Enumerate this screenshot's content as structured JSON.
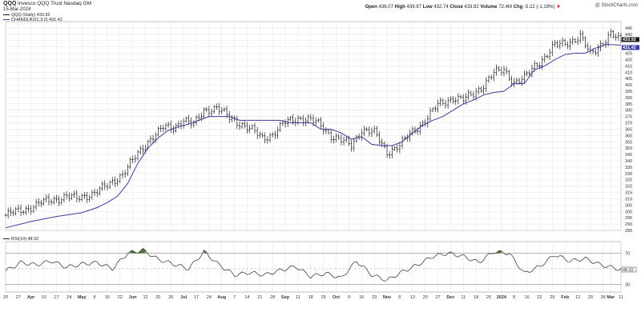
{
  "header": {
    "symbol": "QQQ",
    "name": "Invesco QQQ Trust",
    "exchange": "Nasdaq GM",
    "date": "15-Mar-2024",
    "open_label": "Open",
    "open": "436.07",
    "high_label": "High",
    "high": "439.97",
    "low_label": "Low",
    "low": "432.74",
    "close_label": "Close",
    "close": "433.92",
    "volume_label": "Volume",
    "volume": "72.4M",
    "chg_label": "Chg",
    "chg": "-5.22 (-1.19%)",
    "chg_arrow": "▼",
    "brand": "@ StockCharts.com",
    "price_legend": "QQQ (Daily) 433.92",
    "ch_legend": "CHANDLR(22,3.0) 431.42",
    "rsi_legend": "RSI(14) 48.92"
  },
  "colors": {
    "price_bars": "#1a1a1a",
    "chandelier": "#3a3a9c",
    "rsi_line": "#2a2a2a",
    "rsi_fill": "#4a7a3a",
    "grid": "#e3e3e3",
    "last_price_box": "#1a1a1a",
    "last_ch_box": "#3a3a9c"
  },
  "chart_data": [
    {
      "type": "line",
      "subtype": "ohlc",
      "title": "QQQ (Daily) 433.92",
      "ylim": [
        285,
        450
      ],
      "yticks": [
        285,
        290,
        295,
        300,
        305,
        310,
        315,
        320,
        325,
        330,
        335,
        340,
        345,
        350,
        355,
        360,
        365,
        370,
        375,
        380,
        385,
        390,
        395,
        400,
        405,
        410,
        415,
        420,
        425,
        430,
        435,
        440,
        445
      ],
      "last_price_label": "433.92",
      "last_ch_label": "431.42",
      "series": [
        {
          "name": "QQQ (Daily) 433.92",
          "kind": "close",
          "x_index": [
            0,
            8,
            13,
            18,
            24,
            28,
            35,
            40,
            46,
            52,
            57,
            62,
            66,
            70,
            74,
            78,
            83,
            88,
            92,
            97,
            101,
            105,
            110,
            115,
            120,
            124,
            128,
            132,
            136,
            140,
            145,
            150,
            155,
            160,
            165,
            170,
            176,
            180,
            184,
            188,
            192,
            196,
            200,
            204,
            208,
            212,
            216,
            220,
            226,
            230,
            234,
            238,
            242
          ],
          "values": [
            297,
            302,
            306,
            309,
            312,
            310,
            315,
            320,
            330,
            345,
            358,
            366,
            366,
            373,
            368,
            380,
            382,
            374,
            370,
            364,
            358,
            361,
            370,
            374,
            372,
            368,
            360,
            356,
            352,
            365,
            362,
            347,
            352,
            363,
            372,
            384,
            390,
            388,
            393,
            400,
            409,
            412,
            402,
            405,
            415,
            422,
            431,
            433,
            438,
            424,
            432,
            440,
            433.92
          ]
        },
        {
          "name": "CHANDLR(22,3.0) 431.42",
          "kind": "chandelier",
          "x_index": [
            0,
            10,
            20,
            30,
            36,
            40,
            44,
            48,
            52,
            56,
            60,
            64,
            68,
            72,
            76,
            80,
            84,
            88,
            92,
            96,
            100,
            104,
            108,
            112,
            116,
            120,
            124,
            128,
            132,
            136,
            140,
            144,
            148,
            152,
            156,
            160,
            164,
            168,
            172,
            176,
            180,
            184,
            188,
            192,
            196,
            200,
            204,
            208,
            212,
            216,
            220,
            224,
            228,
            232,
            236,
            242
          ],
          "values": [
            287,
            292,
            296,
            299,
            303,
            307,
            312,
            322,
            338,
            350,
            358,
            364,
            367,
            369,
            372,
            375,
            375,
            375,
            372,
            372,
            372,
            372,
            372,
            370,
            370,
            370,
            365,
            365,
            362,
            357,
            359,
            353,
            352,
            352,
            355,
            362,
            368,
            372,
            375,
            380,
            385,
            388,
            392,
            394,
            395,
            401,
            401,
            412,
            415,
            420,
            424,
            425,
            425,
            429,
            432,
            431.42
          ]
        }
      ]
    },
    {
      "type": "line",
      "title": "RSI(14) 48.92",
      "ylim": [
        20,
        85
      ],
      "yticks": [
        30,
        50,
        70
      ],
      "last_label": "48.92",
      "overbought": 70,
      "oversold": 30,
      "series": [
        {
          "name": "RSI(14) 48.92",
          "x_index": [
            0,
            6,
            12,
            18,
            24,
            30,
            36,
            42,
            48,
            54,
            60,
            66,
            72,
            78,
            84,
            90,
            96,
            102,
            108,
            114,
            120,
            126,
            132,
            138,
            144,
            150,
            156,
            162,
            168,
            174,
            180,
            186,
            192,
            198,
            204,
            210,
            216,
            222,
            228,
            234,
            242
          ],
          "values": [
            47,
            58,
            55,
            60,
            52,
            56,
            58,
            50,
            70,
            74,
            62,
            56,
            50,
            72,
            55,
            42,
            45,
            42,
            48,
            53,
            40,
            44,
            38,
            60,
            42,
            35,
            46,
            55,
            66,
            70,
            66,
            58,
            72,
            70,
            44,
            53,
            68,
            60,
            63,
            55,
            48.92
          ]
        }
      ]
    }
  ],
  "x_axis": {
    "labels": [
      {
        "i": 0,
        "text": "20"
      },
      {
        "i": 5,
        "text": "27"
      },
      {
        "i": 10,
        "text": "Apr"
      },
      {
        "i": 15,
        "text": "10"
      },
      {
        "i": 20,
        "text": "17"
      },
      {
        "i": 25,
        "text": "24"
      },
      {
        "i": 30,
        "text": "May"
      },
      {
        "i": 35,
        "text": "8"
      },
      {
        "i": 40,
        "text": "15"
      },
      {
        "i": 45,
        "text": "22"
      },
      {
        "i": 50,
        "text": "Jun"
      },
      {
        "i": 55,
        "text": "12"
      },
      {
        "i": 60,
        "text": "20"
      },
      {
        "i": 65,
        "text": "26"
      },
      {
        "i": 70,
        "text": "Jul"
      },
      {
        "i": 75,
        "text": "17"
      },
      {
        "i": 80,
        "text": "24"
      },
      {
        "i": 85,
        "text": "Aug"
      },
      {
        "i": 90,
        "text": "7"
      },
      {
        "i": 95,
        "text": "14"
      },
      {
        "i": 100,
        "text": "21"
      },
      {
        "i": 105,
        "text": "28"
      },
      {
        "i": 110,
        "text": "Sep"
      },
      {
        "i": 115,
        "text": "11"
      },
      {
        "i": 120,
        "text": "18"
      },
      {
        "i": 125,
        "text": "25"
      },
      {
        "i": 130,
        "text": "Oct"
      },
      {
        "i": 135,
        "text": "9"
      },
      {
        "i": 140,
        "text": "16"
      },
      {
        "i": 145,
        "text": "23"
      },
      {
        "i": 150,
        "text": "Nov"
      },
      {
        "i": 155,
        "text": "6"
      },
      {
        "i": 160,
        "text": "13"
      },
      {
        "i": 165,
        "text": "20"
      },
      {
        "i": 170,
        "text": "27"
      },
      {
        "i": 175,
        "text": "Dec"
      },
      {
        "i": 180,
        "text": "11"
      },
      {
        "i": 185,
        "text": "18"
      },
      {
        "i": 190,
        "text": "26"
      },
      {
        "i": 195,
        "text": "2024"
      },
      {
        "i": 200,
        "text": "8"
      },
      {
        "i": 205,
        "text": "16"
      },
      {
        "i": 210,
        "text": "22"
      },
      {
        "i": 215,
        "text": "29"
      },
      {
        "i": 220,
        "text": "Feb"
      },
      {
        "i": 225,
        "text": "12"
      },
      {
        "i": 230,
        "text": "20"
      },
      {
        "i": 235,
        "text": "26"
      },
      {
        "i": 238,
        "text": "Mar"
      },
      {
        "i": 242,
        "text": "11"
      }
    ]
  }
}
